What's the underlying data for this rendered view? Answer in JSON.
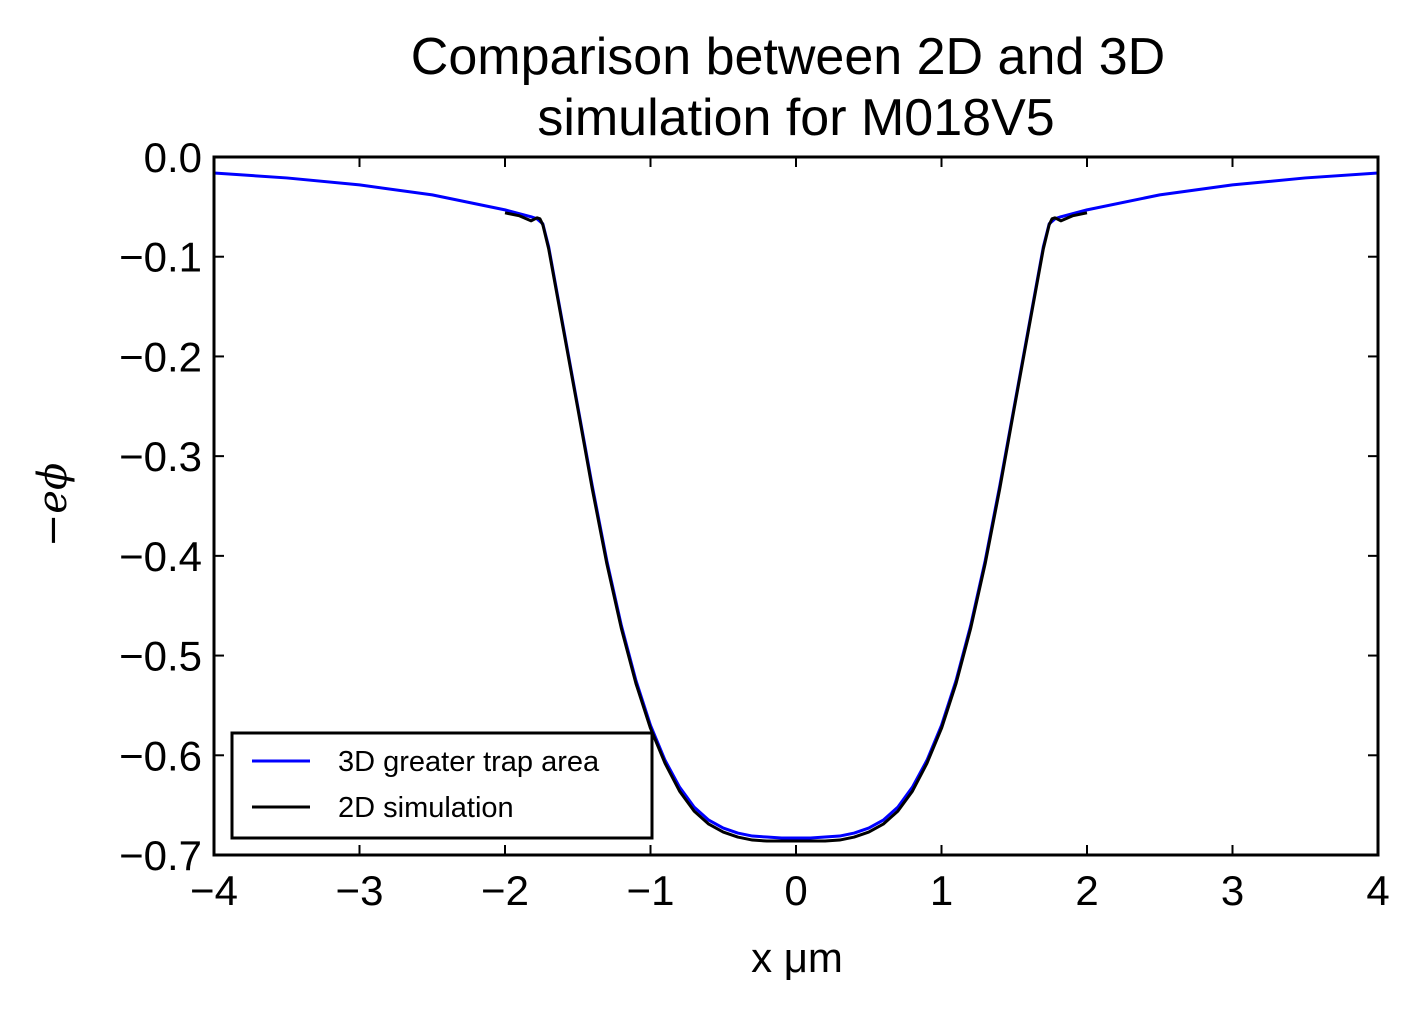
{
  "chart_data": {
    "type": "line",
    "title_line1": "Comparison between 2D and 3D",
    "title_line2": "simulation for M018V5",
    "xlabel": "x μm",
    "ylabel": "−eϕ",
    "xlim": [
      -4,
      4
    ],
    "ylim": [
      -0.7,
      0.0
    ],
    "x_ticks": [
      -4,
      -3,
      -2,
      -1,
      0,
      1,
      2,
      3,
      4
    ],
    "x_tick_labels": [
      "−4",
      "−3",
      "−2",
      "−1",
      "0",
      "1",
      "2",
      "3",
      "4"
    ],
    "y_ticks": [
      0.0,
      -0.1,
      -0.2,
      -0.3,
      -0.4,
      -0.5,
      -0.6,
      -0.7
    ],
    "y_tick_labels": [
      "0.0",
      "−0.1",
      "−0.2",
      "−0.3",
      "−0.4",
      "−0.5",
      "−0.6",
      "−0.7"
    ],
    "grid": false,
    "legend_position": "lower-left",
    "series": [
      {
        "name": "3D greater trap area",
        "color": "#0000ff",
        "x": [
          -4.0,
          -3.5,
          -3.0,
          -2.5,
          -2.0,
          -1.82,
          -1.78,
          -1.74,
          -1.7,
          -1.6,
          -1.5,
          -1.4,
          -1.3,
          -1.2,
          -1.1,
          -1.0,
          -0.9,
          -0.8,
          -0.7,
          -0.6,
          -0.5,
          -0.4,
          -0.3,
          -0.2,
          -0.1,
          0.0,
          0.1,
          0.2,
          0.3,
          0.4,
          0.5,
          0.6,
          0.7,
          0.8,
          0.9,
          1.0,
          1.1,
          1.2,
          1.3,
          1.4,
          1.5,
          1.6,
          1.7,
          1.74,
          1.78,
          1.82,
          2.0,
          2.5,
          3.0,
          3.5,
          4.0
        ],
        "y": [
          -0.016,
          -0.021,
          -0.028,
          -0.038,
          -0.053,
          -0.06,
          -0.062,
          -0.067,
          -0.09,
          -0.17,
          -0.25,
          -0.33,
          -0.405,
          -0.47,
          -0.525,
          -0.57,
          -0.605,
          -0.632,
          -0.652,
          -0.665,
          -0.673,
          -0.678,
          -0.681,
          -0.682,
          -0.683,
          -0.683,
          -0.683,
          -0.682,
          -0.681,
          -0.678,
          -0.673,
          -0.665,
          -0.652,
          -0.632,
          -0.605,
          -0.57,
          -0.525,
          -0.47,
          -0.405,
          -0.33,
          -0.25,
          -0.17,
          -0.09,
          -0.067,
          -0.062,
          -0.06,
          -0.053,
          -0.038,
          -0.028,
          -0.021,
          -0.016
        ]
      },
      {
        "name": "2D simulation",
        "color": "#000000",
        "x": [
          -2.0,
          -1.9,
          -1.82,
          -1.78,
          -1.76,
          -1.74,
          -1.7,
          -1.6,
          -1.5,
          -1.4,
          -1.3,
          -1.2,
          -1.1,
          -1.0,
          -0.9,
          -0.8,
          -0.7,
          -0.6,
          -0.5,
          -0.4,
          -0.3,
          -0.2,
          -0.1,
          0.0,
          0.1,
          0.2,
          0.3,
          0.4,
          0.5,
          0.6,
          0.7,
          0.8,
          0.9,
          1.0,
          1.1,
          1.2,
          1.3,
          1.4,
          1.5,
          1.6,
          1.7,
          1.74,
          1.76,
          1.78,
          1.82,
          1.9,
          2.0
        ],
        "y": [
          -0.056,
          -0.059,
          -0.064,
          -0.061,
          -0.062,
          -0.068,
          -0.092,
          -0.172,
          -0.252,
          -0.333,
          -0.408,
          -0.473,
          -0.528,
          -0.573,
          -0.608,
          -0.636,
          -0.656,
          -0.669,
          -0.677,
          -0.682,
          -0.685,
          -0.686,
          -0.686,
          -0.686,
          -0.686,
          -0.686,
          -0.685,
          -0.682,
          -0.677,
          -0.669,
          -0.656,
          -0.636,
          -0.608,
          -0.573,
          -0.528,
          -0.473,
          -0.408,
          -0.333,
          -0.252,
          -0.172,
          -0.092,
          -0.068,
          -0.062,
          -0.061,
          -0.064,
          -0.059,
          -0.056
        ]
      }
    ]
  }
}
